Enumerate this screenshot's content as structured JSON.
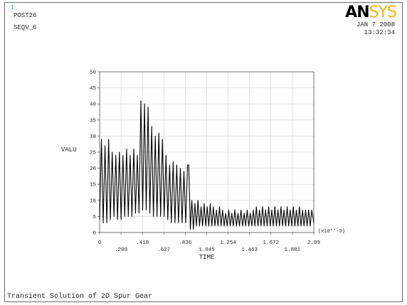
{
  "window_number": "1",
  "header": {
    "post": "POST26",
    "variable": "SEQV_6",
    "date": "JAN  7 2008",
    "time": "13:32:34"
  },
  "logo": {
    "part1": "AN",
    "part2": "SYS"
  },
  "footer": {
    "title": "Transient Solution of 2D Spur Gear"
  },
  "colors": {
    "logo_accent": "#f3b21a",
    "logo_main": "#000000",
    "curve": "#000000",
    "grid": "#d0d0d0"
  },
  "chart_data": {
    "type": "line",
    "xlabel": "TIME",
    "ylabel": "VALU",
    "x_multiplier_label": "(x10**-3)",
    "xlim": [
      0,
      2.09
    ],
    "ylim": [
      0,
      50
    ],
    "y_ticks": [
      0,
      5,
      10,
      15,
      20,
      25,
      30,
      35,
      40,
      45,
      50
    ],
    "x_ticks_upper": [
      "0",
      ".418",
      ".836",
      "1.254",
      "1.672",
      "2.09"
    ],
    "x_ticks_lower": [
      ".209",
      ".627",
      "1.045",
      "1.463",
      "1.881"
    ],
    "x_tick_values": [
      0,
      0.209,
      0.418,
      0.627,
      0.836,
      1.045,
      1.254,
      1.463,
      1.672,
      1.881,
      2.09
    ],
    "grid": true,
    "legend": "none",
    "series": [
      {
        "values": [
          [
            0.0,
            4
          ],
          [
            0.018,
            29
          ],
          [
            0.035,
            3
          ],
          [
            0.053,
            27
          ],
          [
            0.07,
            3
          ],
          [
            0.088,
            29
          ],
          [
            0.105,
            4
          ],
          [
            0.123,
            25
          ],
          [
            0.14,
            5
          ],
          [
            0.158,
            24
          ],
          [
            0.175,
            4
          ],
          [
            0.193,
            25
          ],
          [
            0.21,
            4
          ],
          [
            0.228,
            24
          ],
          [
            0.245,
            5
          ],
          [
            0.263,
            26
          ],
          [
            0.28,
            5
          ],
          [
            0.298,
            24
          ],
          [
            0.315,
            5
          ],
          [
            0.333,
            26
          ],
          [
            0.35,
            6
          ],
          [
            0.368,
            24
          ],
          [
            0.385,
            6
          ],
          [
            0.403,
            41
          ],
          [
            0.42,
            7
          ],
          [
            0.438,
            40
          ],
          [
            0.455,
            7
          ],
          [
            0.473,
            39
          ],
          [
            0.49,
            6
          ],
          [
            0.508,
            33
          ],
          [
            0.525,
            5
          ],
          [
            0.543,
            30
          ],
          [
            0.56,
            5
          ],
          [
            0.578,
            31
          ],
          [
            0.595,
            5
          ],
          [
            0.613,
            29
          ],
          [
            0.63,
            5
          ],
          [
            0.648,
            24
          ],
          [
            0.665,
            4
          ],
          [
            0.683,
            21
          ],
          [
            0.7,
            3
          ],
          [
            0.718,
            22
          ],
          [
            0.735,
            3
          ],
          [
            0.753,
            21
          ],
          [
            0.77,
            3
          ],
          [
            0.788,
            20
          ],
          [
            0.805,
            3
          ],
          [
            0.823,
            19
          ],
          [
            0.84,
            3
          ],
          [
            0.858,
            21
          ],
          [
            0.87,
            21
          ],
          [
            0.885,
            1
          ],
          [
            0.9,
            10
          ],
          [
            0.915,
            1
          ],
          [
            0.93,
            9
          ],
          [
            0.945,
            2
          ],
          [
            0.96,
            10
          ],
          [
            0.975,
            2
          ],
          [
            0.99,
            8
          ],
          [
            1.005,
            2
          ],
          [
            1.02,
            9
          ],
          [
            1.035,
            2
          ],
          [
            1.05,
            8
          ],
          [
            1.065,
            2
          ],
          [
            1.08,
            9
          ],
          [
            1.095,
            2
          ],
          [
            1.11,
            8
          ],
          [
            1.125,
            2
          ],
          [
            1.14,
            7
          ],
          [
            1.155,
            2
          ],
          [
            1.17,
            8
          ],
          [
            1.185,
            2
          ],
          [
            1.2,
            7
          ],
          [
            1.215,
            2
          ],
          [
            1.23,
            6
          ],
          [
            1.245,
            2
          ],
          [
            1.26,
            7
          ],
          [
            1.275,
            2
          ],
          [
            1.29,
            6
          ],
          [
            1.305,
            2
          ],
          [
            1.32,
            7
          ],
          [
            1.335,
            2
          ],
          [
            1.35,
            6
          ],
          [
            1.365,
            2
          ],
          [
            1.38,
            7
          ],
          [
            1.395,
            2
          ],
          [
            1.41,
            6
          ],
          [
            1.425,
            2
          ],
          [
            1.44,
            7
          ],
          [
            1.455,
            2
          ],
          [
            1.47,
            6
          ],
          [
            1.485,
            2
          ],
          [
            1.5,
            7
          ],
          [
            1.515,
            2
          ],
          [
            1.53,
            8
          ],
          [
            1.545,
            2
          ],
          [
            1.56,
            7
          ],
          [
            1.575,
            2
          ],
          [
            1.59,
            8
          ],
          [
            1.605,
            2
          ],
          [
            1.62,
            7
          ],
          [
            1.635,
            2
          ],
          [
            1.65,
            8
          ],
          [
            1.665,
            2
          ],
          [
            1.68,
            7
          ],
          [
            1.695,
            2
          ],
          [
            1.71,
            8
          ],
          [
            1.725,
            2
          ],
          [
            1.74,
            7
          ],
          [
            1.755,
            2
          ],
          [
            1.77,
            8
          ],
          [
            1.785,
            2
          ],
          [
            1.8,
            7
          ],
          [
            1.815,
            2
          ],
          [
            1.83,
            8
          ],
          [
            1.845,
            2
          ],
          [
            1.86,
            7
          ],
          [
            1.875,
            2
          ],
          [
            1.89,
            8
          ],
          [
            1.905,
            2
          ],
          [
            1.92,
            7
          ],
          [
            1.935,
            2
          ],
          [
            1.95,
            8
          ],
          [
            1.965,
            2
          ],
          [
            1.98,
            7
          ],
          [
            1.995,
            2
          ],
          [
            2.01,
            7
          ],
          [
            2.025,
            2
          ],
          [
            2.04,
            7
          ],
          [
            2.055,
            2
          ],
          [
            2.07,
            7
          ],
          [
            2.09,
            3
          ]
        ]
      }
    ]
  }
}
